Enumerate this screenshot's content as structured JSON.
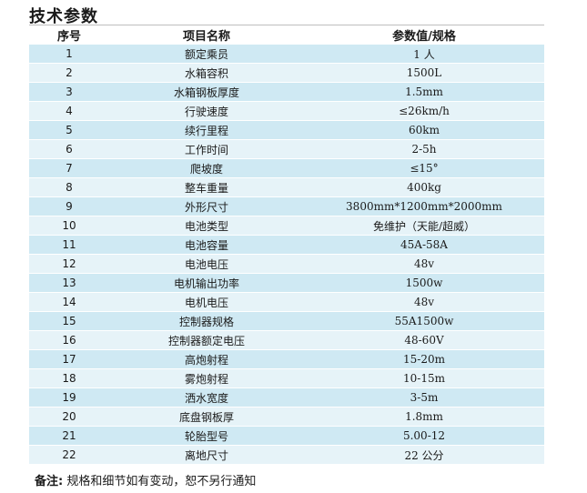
{
  "title": "技术参数",
  "columns": [
    "序号",
    "项目名称",
    "参数值/规格"
  ],
  "rows": [
    {
      "no": "1",
      "name": "额定乘员",
      "value": "1 人"
    },
    {
      "no": "2",
      "name": "水箱容积",
      "value": "1500L"
    },
    {
      "no": "3",
      "name": "水箱钢板厚度",
      "value": "1.5mm"
    },
    {
      "no": "4",
      "name": "行驶速度",
      "value": "≤26km/h"
    },
    {
      "no": "5",
      "name": "续行里程",
      "value": "60km"
    },
    {
      "no": "6",
      "name": "工作时间",
      "value": "2-5h"
    },
    {
      "no": "7",
      "name": "爬坡度",
      "value": "≤15°"
    },
    {
      "no": "8",
      "name": "整车重量",
      "value": "400kg"
    },
    {
      "no": "9",
      "name": "外形尺寸",
      "value": "3800mm*1200mm*2000mm"
    },
    {
      "no": "10",
      "name": "电池类型",
      "value": "免维护（天能/超威）"
    },
    {
      "no": "11",
      "name": "电池容量",
      "value": "45A-58A"
    },
    {
      "no": "12",
      "name": "电池电压",
      "value": "48v"
    },
    {
      "no": "13",
      "name": "电机输出功率",
      "value": "1500w"
    },
    {
      "no": "14",
      "name": "电机电压",
      "value": "48v"
    },
    {
      "no": "15",
      "name": "控制器规格",
      "value": "55A1500w"
    },
    {
      "no": "16",
      "name": "控制器额定电压",
      "value": "48-60V"
    },
    {
      "no": "17",
      "name": "高炮射程",
      "value": "15-20m"
    },
    {
      "no": "18",
      "name": "雾炮射程",
      "value": "10-15m"
    },
    {
      "no": "19",
      "name": "洒水宽度",
      "value": "3-5m"
    },
    {
      "no": "20",
      "name": "底盘钢板厚",
      "value": "1.8mm"
    },
    {
      "no": "21",
      "name": "轮胎型号",
      "value": "5.00-12"
    },
    {
      "no": "22",
      "name": "离地尺寸",
      "value": "22 公分"
    }
  ],
  "note": {
    "label": "备注:",
    "text": "规格和细节如有变动，恕不另行通知"
  },
  "colors": {
    "row_odd": "#cfe9f3",
    "row_even": "#e6f3f8",
    "rule": "#bfbfbf"
  }
}
